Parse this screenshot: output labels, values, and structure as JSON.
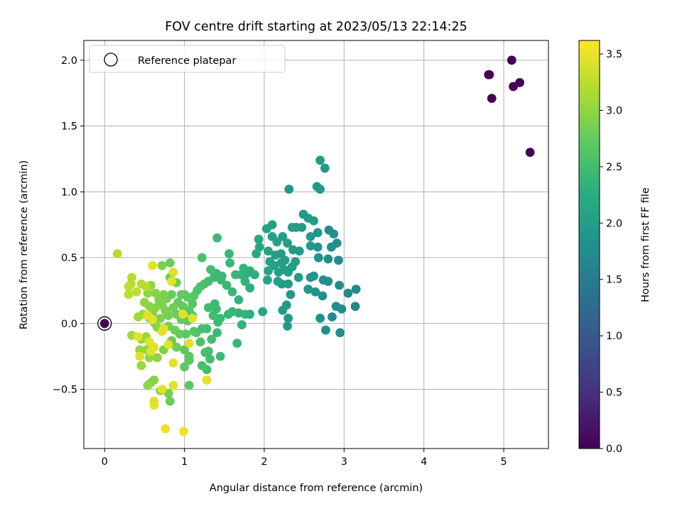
{
  "chart_data": {
    "type": "scatter",
    "title": "FOV centre drift starting at 2023/05/13 22:14:25",
    "xlabel": "Angular distance from reference (arcmin)",
    "ylabel": "Rotation from reference (arcmin)",
    "xlim": [
      -0.26,
      5.56
    ],
    "ylim": [
      -0.95,
      2.15
    ],
    "xticks": [
      0,
      1,
      2,
      3,
      4,
      5
    ],
    "yticks": [
      -0.5,
      0.0,
      0.5,
      1.0,
      1.5,
      2.0
    ],
    "xtick_labels": [
      "0",
      "1",
      "2",
      "3",
      "4",
      "5"
    ],
    "ytick_labels": [
      "−0.5",
      "0.0",
      "0.5",
      "1.0",
      "1.5",
      "2.0"
    ],
    "grid": true,
    "legend": {
      "position": "top-left",
      "label": "Reference platepar"
    },
    "colorbar": {
      "label": "Hours from first FF file",
      "min": 0.0,
      "max": 3.62,
      "ticks": [
        0.0,
        0.5,
        1.0,
        1.5,
        2.0,
        2.5,
        3.0,
        3.5
      ],
      "tick_labels": [
        "0.0",
        "0.5",
        "1.0",
        "1.5",
        "2.0",
        "2.5",
        "3.0",
        "3.5"
      ],
      "colormap": "viridis"
    },
    "reference_point": {
      "x": 0.0,
      "y": 0.0,
      "c": 0.0
    },
    "points": [
      {
        "x": 4.81,
        "y": 1.89,
        "c": 0.02
      },
      {
        "x": 4.82,
        "y": 1.89,
        "c": 0.02
      },
      {
        "x": 5.1,
        "y": 2.0,
        "c": 0.03
      },
      {
        "x": 5.2,
        "y": 1.83,
        "c": 0.03
      },
      {
        "x": 5.12,
        "y": 1.8,
        "c": 0.03
      },
      {
        "x": 4.85,
        "y": 1.71,
        "c": 0.02
      },
      {
        "x": 5.33,
        "y": 1.3,
        "c": 0.04
      },
      {
        "x": 2.7,
        "y": 1.24,
        "c": 1.95
      },
      {
        "x": 2.76,
        "y": 1.18,
        "c": 1.95
      },
      {
        "x": 2.31,
        "y": 1.02,
        "c": 1.92
      },
      {
        "x": 2.66,
        "y": 1.04,
        "c": 1.95
      },
      {
        "x": 2.7,
        "y": 1.02,
        "c": 1.95
      },
      {
        "x": 2.49,
        "y": 0.83,
        "c": 1.95
      },
      {
        "x": 2.55,
        "y": 0.8,
        "c": 1.95
      },
      {
        "x": 2.62,
        "y": 0.78,
        "c": 1.95
      },
      {
        "x": 2.4,
        "y": 0.73,
        "c": 1.95
      },
      {
        "x": 2.47,
        "y": 0.73,
        "c": 1.95
      },
      {
        "x": 2.81,
        "y": 0.71,
        "c": 1.8
      },
      {
        "x": 2.91,
        "y": 0.61,
        "c": 1.75
      },
      {
        "x": 2.67,
        "y": 0.69,
        "c": 1.85
      },
      {
        "x": 2.87,
        "y": 0.68,
        "c": 1.8
      },
      {
        "x": 2.58,
        "y": 0.66,
        "c": 1.9
      },
      {
        "x": 2.84,
        "y": 0.58,
        "c": 1.8
      },
      {
        "x": 2.67,
        "y": 0.58,
        "c": 1.85
      },
      {
        "x": 2.93,
        "y": 0.48,
        "c": 1.75
      },
      {
        "x": 2.8,
        "y": 0.49,
        "c": 1.8
      },
      {
        "x": 2.68,
        "y": 0.5,
        "c": 1.85
      },
      {
        "x": 2.58,
        "y": 0.59,
        "c": 1.9
      },
      {
        "x": 2.74,
        "y": 0.33,
        "c": 1.8
      },
      {
        "x": 2.8,
        "y": 0.32,
        "c": 1.8
      },
      {
        "x": 2.94,
        "y": 0.29,
        "c": 1.75
      },
      {
        "x": 3.15,
        "y": 0.26,
        "c": 1.7
      },
      {
        "x": 3.05,
        "y": 0.23,
        "c": 1.7
      },
      {
        "x": 2.97,
        "y": 0.11,
        "c": 1.75
      },
      {
        "x": 3.14,
        "y": 0.13,
        "c": 1.7
      },
      {
        "x": 2.9,
        "y": 0.13,
        "c": 1.75
      },
      {
        "x": 2.85,
        "y": 0.05,
        "c": 1.75
      },
      {
        "x": 2.7,
        "y": 0.04,
        "c": 1.8
      },
      {
        "x": 2.77,
        "y": -0.05,
        "c": 1.8
      },
      {
        "x": 2.95,
        "y": -0.07,
        "c": 1.75
      },
      {
        "x": 2.62,
        "y": 0.36,
        "c": 1.85
      },
      {
        "x": 2.58,
        "y": 0.35,
        "c": 1.85
      },
      {
        "x": 2.55,
        "y": 0.26,
        "c": 1.9
      },
      {
        "x": 2.64,
        "y": 0.24,
        "c": 1.85
      },
      {
        "x": 2.73,
        "y": 0.21,
        "c": 1.8
      },
      {
        "x": 2.3,
        "y": 0.3,
        "c": 1.95
      },
      {
        "x": 2.33,
        "y": 0.22,
        "c": 1.95
      },
      {
        "x": 2.22,
        "y": 0.3,
        "c": 1.95
      },
      {
        "x": 2.28,
        "y": 0.14,
        "c": 1.95
      },
      {
        "x": 2.23,
        "y": 0.1,
        "c": 2.0
      },
      {
        "x": 2.3,
        "y": 0.04,
        "c": 1.95
      },
      {
        "x": 2.29,
        "y": -0.02,
        "c": 1.95
      },
      {
        "x": 2.03,
        "y": 0.72,
        "c": 2.1
      },
      {
        "x": 2.1,
        "y": 0.75,
        "c": 2.05
      },
      {
        "x": 2.1,
        "y": 0.66,
        "c": 2.05
      },
      {
        "x": 2.16,
        "y": 0.62,
        "c": 2.05
      },
      {
        "x": 2.23,
        "y": 0.66,
        "c": 2.0
      },
      {
        "x": 2.29,
        "y": 0.61,
        "c": 2.0
      },
      {
        "x": 2.36,
        "y": 0.56,
        "c": 2.0
      },
      {
        "x": 2.44,
        "y": 0.55,
        "c": 1.95
      },
      {
        "x": 2.35,
        "y": 0.73,
        "c": 2.0
      },
      {
        "x": 2.05,
        "y": 0.55,
        "c": 2.1
      },
      {
        "x": 2.14,
        "y": 0.52,
        "c": 2.05
      },
      {
        "x": 2.21,
        "y": 0.53,
        "c": 2.0
      },
      {
        "x": 2.26,
        "y": 0.48,
        "c": 2.0
      },
      {
        "x": 2.35,
        "y": 0.43,
        "c": 2.0
      },
      {
        "x": 2.12,
        "y": 0.44,
        "c": 2.05
      },
      {
        "x": 2.18,
        "y": 0.39,
        "c": 2.05
      },
      {
        "x": 2.25,
        "y": 0.41,
        "c": 2.0
      },
      {
        "x": 2.3,
        "y": 0.39,
        "c": 2.0
      },
      {
        "x": 2.05,
        "y": 0.4,
        "c": 2.1
      },
      {
        "x": 2.04,
        "y": 0.33,
        "c": 2.1
      },
      {
        "x": 2.17,
        "y": 0.32,
        "c": 2.05
      },
      {
        "x": 2.21,
        "y": 0.46,
        "c": 2.0
      },
      {
        "x": 2.39,
        "y": 0.47,
        "c": 2.0
      },
      {
        "x": 2.43,
        "y": 0.35,
        "c": 1.95
      },
      {
        "x": 1.98,
        "y": 0.09,
        "c": 2.15
      },
      {
        "x": 1.93,
        "y": 0.64,
        "c": 2.15
      },
      {
        "x": 1.94,
        "y": 0.58,
        "c": 2.15
      },
      {
        "x": 1.9,
        "y": 0.53,
        "c": 2.2
      },
      {
        "x": 2.07,
        "y": 0.47,
        "c": 2.1
      },
      {
        "x": 1.82,
        "y": 0.4,
        "c": 2.3
      },
      {
        "x": 1.78,
        "y": 0.38,
        "c": 2.3
      },
      {
        "x": 1.72,
        "y": 0.37,
        "c": 2.35
      },
      {
        "x": 1.88,
        "y": 0.37,
        "c": 2.25
      },
      {
        "x": 1.76,
        "y": 0.32,
        "c": 2.35
      },
      {
        "x": 1.74,
        "y": 0.42,
        "c": 2.35
      },
      {
        "x": 1.71,
        "y": 0.37,
        "c": 2.35
      },
      {
        "x": 1.64,
        "y": 0.37,
        "c": 2.4
      },
      {
        "x": 1.57,
        "y": 0.46,
        "c": 2.4
      },
      {
        "x": 1.56,
        "y": 0.53,
        "c": 2.4
      },
      {
        "x": 1.41,
        "y": 0.65,
        "c": 2.45
      },
      {
        "x": 1.82,
        "y": 0.27,
        "c": 2.3
      },
      {
        "x": 1.53,
        "y": 0.29,
        "c": 2.4
      },
      {
        "x": 1.6,
        "y": 0.24,
        "c": 2.4
      },
      {
        "x": 1.68,
        "y": 0.18,
        "c": 2.35
      },
      {
        "x": 1.68,
        "y": 0.08,
        "c": 2.35
      },
      {
        "x": 1.6,
        "y": 0.09,
        "c": 2.4
      },
      {
        "x": 1.76,
        "y": 0.07,
        "c": 2.35
      },
      {
        "x": 1.82,
        "y": 0.07,
        "c": 2.3
      },
      {
        "x": 1.72,
        "y": -0.01,
        "c": 2.35
      },
      {
        "x": 1.66,
        "y": -0.15,
        "c": 2.4
      },
      {
        "x": 1.55,
        "y": 0.07,
        "c": 2.4
      },
      {
        "x": 1.45,
        "y": 0.04,
        "c": 2.45
      },
      {
        "x": 1.4,
        "y": 0.38,
        "c": 2.45
      },
      {
        "x": 1.33,
        "y": 0.41,
        "c": 2.5
      },
      {
        "x": 1.37,
        "y": 0.35,
        "c": 2.45
      },
      {
        "x": 1.47,
        "y": 0.36,
        "c": 2.45
      },
      {
        "x": 1.46,
        "y": 0.33,
        "c": 2.45
      },
      {
        "x": 1.22,
        "y": 0.5,
        "c": 2.55
      },
      {
        "x": 1.3,
        "y": 0.32,
        "c": 2.5
      },
      {
        "x": 1.25,
        "y": 0.3,
        "c": 2.55
      },
      {
        "x": 1.2,
        "y": 0.28,
        "c": 2.55
      },
      {
        "x": 1.16,
        "y": 0.25,
        "c": 2.6
      },
      {
        "x": 1.38,
        "y": 0.15,
        "c": 2.45
      },
      {
        "x": 1.3,
        "y": 0.12,
        "c": 2.5
      },
      {
        "x": 1.36,
        "y": 0.06,
        "c": 2.5
      },
      {
        "x": 1.4,
        "y": 0.11,
        "c": 2.45
      },
      {
        "x": 1.42,
        "y": 0.01,
        "c": 2.45
      },
      {
        "x": 1.28,
        "y": -0.04,
        "c": 2.5
      },
      {
        "x": 1.34,
        "y": -0.12,
        "c": 2.5
      },
      {
        "x": 1.3,
        "y": -0.21,
        "c": 2.5
      },
      {
        "x": 1.41,
        "y": -0.07,
        "c": 2.45
      },
      {
        "x": 1.45,
        "y": -0.25,
        "c": 2.45
      },
      {
        "x": 1.32,
        "y": -0.27,
        "c": 2.5
      },
      {
        "x": 1.28,
        "y": -0.35,
        "c": 2.5
      },
      {
        "x": 1.22,
        "y": -0.32,
        "c": 2.55
      },
      {
        "x": 1.26,
        "y": -0.22,
        "c": 2.55
      },
      {
        "x": 1.2,
        "y": -0.14,
        "c": 2.55
      },
      {
        "x": 1.15,
        "y": -0.07,
        "c": 2.6
      },
      {
        "x": 1.22,
        "y": -0.04,
        "c": 2.55
      },
      {
        "x": 1.1,
        "y": 0.15,
        "c": 2.65
      },
      {
        "x": 1.12,
        "y": 0.21,
        "c": 2.65
      },
      {
        "x": 1.04,
        "y": 0.2,
        "c": 2.7
      },
      {
        "x": 1.0,
        "y": 0.22,
        "c": 2.7
      },
      {
        "x": 0.96,
        "y": 0.22,
        "c": 2.75
      },
      {
        "x": 0.92,
        "y": 0.16,
        "c": 2.75
      },
      {
        "x": 0.98,
        "y": 0.13,
        "c": 2.75
      },
      {
        "x": 1.06,
        "y": 0.1,
        "c": 2.7
      },
      {
        "x": 1.1,
        "y": 0.06,
        "c": 2.65
      },
      {
        "x": 1.04,
        "y": 0.02,
        "c": 2.7
      },
      {
        "x": 0.96,
        "y": 0.03,
        "c": 2.75
      },
      {
        "x": 0.9,
        "y": 0.07,
        "c": 2.8
      },
      {
        "x": 0.86,
        "y": 0.12,
        "c": 2.8
      },
      {
        "x": 0.8,
        "y": 0.06,
        "c": 2.85
      },
      {
        "x": 0.76,
        "y": 0.1,
        "c": 2.85
      },
      {
        "x": 0.72,
        "y": 0.14,
        "c": 2.9
      },
      {
        "x": 0.78,
        "y": 0.19,
        "c": 2.85
      },
      {
        "x": 0.84,
        "y": 0.22,
        "c": 2.8
      },
      {
        "x": 0.74,
        "y": 0.22,
        "c": 2.9
      },
      {
        "x": 0.68,
        "y": 0.18,
        "c": 2.9
      },
      {
        "x": 0.64,
        "y": 0.12,
        "c": 2.95
      },
      {
        "x": 0.7,
        "y": 0.04,
        "c": 2.9
      },
      {
        "x": 0.63,
        "y": 0.0,
        "c": 2.95
      },
      {
        "x": 0.56,
        "y": 0.04,
        "c": 3.0
      },
      {
        "x": 0.6,
        "y": 0.07,
        "c": 2.95
      },
      {
        "x": 0.66,
        "y": -0.03,
        "c": 2.95
      },
      {
        "x": 0.72,
        "y": -0.05,
        "c": 2.9
      },
      {
        "x": 0.8,
        "y": -0.02,
        "c": 2.85
      },
      {
        "x": 0.88,
        "y": -0.05,
        "c": 2.8
      },
      {
        "x": 0.94,
        "y": -0.08,
        "c": 2.75
      },
      {
        "x": 1.02,
        "y": -0.08,
        "c": 2.7
      },
      {
        "x": 1.12,
        "y": -0.06,
        "c": 2.65
      },
      {
        "x": 0.84,
        "y": -0.13,
        "c": 2.8
      },
      {
        "x": 0.9,
        "y": -0.18,
        "c": 2.8
      },
      {
        "x": 1.0,
        "y": -0.2,
        "c": 2.7
      },
      {
        "x": 1.06,
        "y": -0.25,
        "c": 2.7
      },
      {
        "x": 1.06,
        "y": -0.28,
        "c": 2.7
      },
      {
        "x": 1.0,
        "y": -0.33,
        "c": 2.7
      },
      {
        "x": 1.06,
        "y": -0.47,
        "c": 2.7
      },
      {
        "x": 0.82,
        "y": -0.59,
        "c": 2.8
      },
      {
        "x": 0.9,
        "y": 0.31,
        "c": 2.8
      },
      {
        "x": 0.82,
        "y": 0.35,
        "c": 2.8
      },
      {
        "x": 0.72,
        "y": 0.44,
        "c": 2.9
      },
      {
        "x": 0.82,
        "y": 0.46,
        "c": 2.8
      },
      {
        "x": 0.64,
        "y": 0.23,
        "c": 2.95
      },
      {
        "x": 0.58,
        "y": 0.29,
        "c": 3.0
      },
      {
        "x": 0.54,
        "y": 0.23,
        "c": 3.0
      },
      {
        "x": 0.5,
        "y": 0.16,
        "c": 3.0
      },
      {
        "x": 0.56,
        "y": 0.13,
        "c": 3.0
      },
      {
        "x": 0.48,
        "y": 0.07,
        "c": 3.05
      },
      {
        "x": 0.42,
        "y": 0.05,
        "c": 3.1
      },
      {
        "x": 0.34,
        "y": -0.09,
        "c": 3.1
      },
      {
        "x": 0.46,
        "y": -0.12,
        "c": 3.05
      },
      {
        "x": 0.52,
        "y": -0.1,
        "c": 3.05
      },
      {
        "x": 0.44,
        "y": -0.2,
        "c": 3.05
      },
      {
        "x": 0.52,
        "y": -0.2,
        "c": 3.05
      },
      {
        "x": 0.56,
        "y": -0.26,
        "c": 3.0
      },
      {
        "x": 0.66,
        "y": -0.26,
        "c": 3.0
      },
      {
        "x": 0.74,
        "y": -0.2,
        "c": 2.9
      },
      {
        "x": 0.46,
        "y": -0.32,
        "c": 3.05
      },
      {
        "x": 0.54,
        "y": -0.47,
        "c": 3.0
      },
      {
        "x": 0.58,
        "y": -0.45,
        "c": 3.0
      },
      {
        "x": 0.62,
        "y": -0.43,
        "c": 2.95
      },
      {
        "x": 0.7,
        "y": -0.51,
        "c": 2.9
      },
      {
        "x": 0.8,
        "y": -0.53,
        "c": 2.85
      },
      {
        "x": 0.16,
        "y": 0.53,
        "c": 3.2
      },
      {
        "x": 0.34,
        "y": 0.35,
        "c": 3.2
      },
      {
        "x": 0.33,
        "y": 0.3,
        "c": 3.2
      },
      {
        "x": 0.3,
        "y": 0.28,
        "c": 3.25
      },
      {
        "x": 0.4,
        "y": 0.24,
        "c": 3.25
      },
      {
        "x": 0.3,
        "y": 0.22,
        "c": 3.25
      },
      {
        "x": 0.46,
        "y": 0.3,
        "c": 3.2
      },
      {
        "x": 0.52,
        "y": 0.28,
        "c": 3.2
      },
      {
        "x": 0.6,
        "y": 0.44,
        "c": 3.45
      },
      {
        "x": 0.86,
        "y": 0.39,
        "c": 3.45
      },
      {
        "x": 0.84,
        "y": 0.32,
        "c": 3.45
      },
      {
        "x": 0.54,
        "y": 0.06,
        "c": 3.45
      },
      {
        "x": 0.6,
        "y": 0.03,
        "c": 3.45
      },
      {
        "x": 0.98,
        "y": 0.07,
        "c": 3.45
      },
      {
        "x": 1.1,
        "y": 0.04,
        "c": 3.45
      },
      {
        "x": 0.74,
        "y": -0.04,
        "c": 3.45
      },
      {
        "x": 0.72,
        "y": -0.06,
        "c": 3.45
      },
      {
        "x": 0.42,
        "y": -0.1,
        "c": 3.45
      },
      {
        "x": 0.56,
        "y": -0.14,
        "c": 3.45
      },
      {
        "x": 0.62,
        "y": -0.18,
        "c": 3.45
      },
      {
        "x": 0.58,
        "y": -0.21,
        "c": 3.45
      },
      {
        "x": 0.8,
        "y": -0.16,
        "c": 3.45
      },
      {
        "x": 1.06,
        "y": -0.15,
        "c": 3.45
      },
      {
        "x": 0.44,
        "y": -0.25,
        "c": 3.45
      },
      {
        "x": 0.86,
        "y": -0.3,
        "c": 3.45
      },
      {
        "x": 1.28,
        "y": -0.43,
        "c": 3.45
      },
      {
        "x": 0.86,
        "y": -0.47,
        "c": 3.45
      },
      {
        "x": 0.72,
        "y": -0.5,
        "c": 3.45
      },
      {
        "x": 0.62,
        "y": -0.59,
        "c": 3.45
      },
      {
        "x": 0.62,
        "y": -0.62,
        "c": 3.45
      },
      {
        "x": 0.76,
        "y": -0.8,
        "c": 3.5
      },
      {
        "x": 0.99,
        "y": -0.82,
        "c": 3.5
      }
    ]
  }
}
